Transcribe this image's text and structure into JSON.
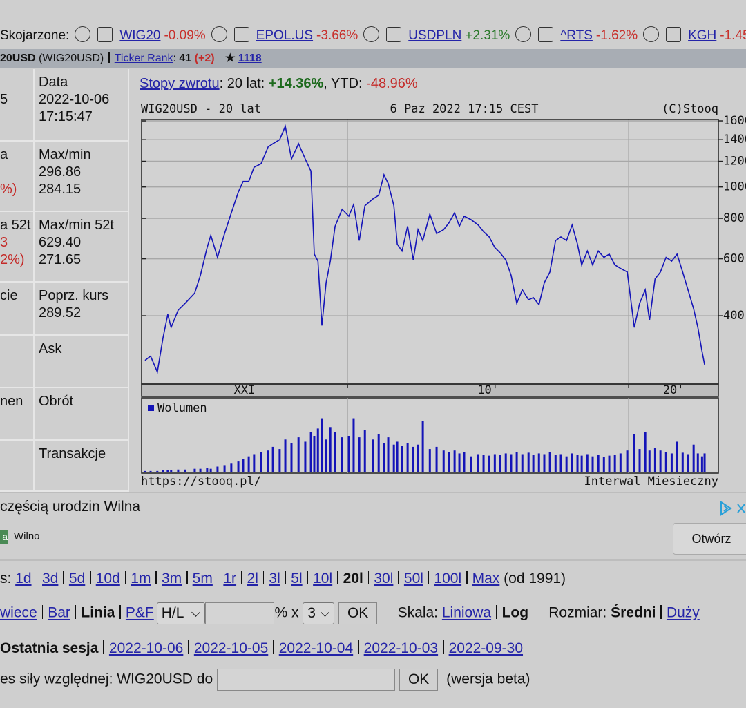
{
  "related": {
    "label": "Skojarzone:",
    "items": [
      {
        "name": "WIG20",
        "change": "-0.09%",
        "color": "#c8302c"
      },
      {
        "name": "EPOL.US",
        "change": "-3.66%",
        "color": "#c8302c"
      },
      {
        "name": "USDPLN",
        "change": "+2.31%",
        "color": "#2b7a2b"
      },
      {
        "name": "^RTS",
        "change": "-1.62%",
        "color": "#c8302c"
      },
      {
        "name": "KGH",
        "change": "-1.45",
        "color": "#c8302c"
      }
    ]
  },
  "ticker_bar": [
    {
      "text": "20USD",
      "style": "bold"
    },
    {
      "text": " (WIG20USD)"
    },
    {
      "style": "sep"
    },
    {
      "text": "Ticker Rank",
      "style": "link"
    },
    {
      "text": ": "
    },
    {
      "text": "41",
      "style": "bold"
    },
    {
      "text": " "
    },
    {
      "text": "(+2)",
      "style": "bold red"
    },
    {
      "style": "sep"
    },
    {
      "text": "★ ",
      "style": "bold"
    },
    {
      "text": "1118",
      "style": "link bold"
    }
  ],
  "quote_table": {
    "rows": [
      {
        "left": [
          null,
          {
            "text": "5"
          }
        ],
        "right": [
          "Data",
          "2022-10-06",
          "17:15:47"
        ]
      },
      {
        "left": [
          {
            "text": "a"
          },
          null,
          {
            "text": "%)",
            "style": "red"
          }
        ],
        "right": [
          "Max/min",
          "296.86",
          "284.15"
        ]
      },
      {
        "left": [
          {
            "text": "a 52t"
          },
          {
            "text": "3",
            "style": "red"
          },
          {
            "text": "2%)",
            "style": "red"
          }
        ],
        "right": [
          "Max/min 52t",
          "629.40",
          "271.65"
        ]
      },
      {
        "left": [
          {
            "text": "cie"
          }
        ],
        "right": [
          "Poprz. kurs",
          "289.52"
        ]
      },
      {
        "left": [],
        "right": [
          "Ask"
        ]
      },
      {
        "left": [
          {
            "text": "nen"
          }
        ],
        "right": [
          "Obrót"
        ]
      },
      {
        "left": [],
        "right": [
          "Transakcje"
        ]
      }
    ]
  },
  "returns": [
    {
      "text": "Stopy zwrotu",
      "style": "link"
    },
    {
      "text": ": 20 lat: "
    },
    {
      "text": "+14.36%",
      "style": "green bold"
    },
    {
      "text": ", YTD: "
    },
    {
      "text": "-48.96%",
      "style": "red"
    }
  ],
  "chart_data": {
    "type": "line",
    "title": "WIG20USD - 20 lat",
    "subtitle": "6 Paz 2022 17:15 CEST",
    "credit": "(C)Stooq",
    "color": "#1414b8",
    "log_y": true,
    "grid": true,
    "xlim": [
      2002.68,
      2023.19
    ],
    "xticks": [
      {
        "value": 2010,
        "label": "10'"
      },
      {
        "value": 2020,
        "label": "20'"
      }
    ],
    "x_start_label": "XXI",
    "ylim": [
      246,
      1616
    ],
    "yticks": [
      400,
      600,
      800,
      1000,
      1200,
      1400,
      1600
    ],
    "x": [
      2002.8,
      2003.0,
      2003.24,
      2003.44,
      2003.61,
      2003.73,
      2003.98,
      2004.23,
      2004.57,
      2004.77,
      2005.01,
      2005.14,
      2005.38,
      2005.63,
      2005.87,
      2006.12,
      2006.29,
      2006.49,
      2006.68,
      2006.93,
      2007.18,
      2007.35,
      2007.59,
      2007.79,
      2008.01,
      2008.26,
      2008.5,
      2008.7,
      2008.82,
      2008.95,
      2009.09,
      2009.24,
      2009.39,
      2009.56,
      2009.81,
      2010.05,
      2010.22,
      2010.42,
      2010.62,
      2010.91,
      2011.11,
      2011.3,
      2011.45,
      2011.65,
      2011.77,
      2011.94,
      2012.14,
      2012.34,
      2012.51,
      2012.68,
      2012.93,
      2013.17,
      2013.42,
      2013.61,
      2013.81,
      2013.98,
      2014.15,
      2014.4,
      2014.65,
      2014.84,
      2015.04,
      2015.24,
      2015.43,
      2015.63,
      2015.82,
      2016.02,
      2016.22,
      2016.44,
      2016.61,
      2016.81,
      2017.0,
      2017.2,
      2017.4,
      2017.59,
      2017.79,
      2017.99,
      2018.18,
      2018.33,
      2018.53,
      2018.72,
      2018.92,
      2019.12,
      2019.31,
      2019.51,
      2019.71,
      2019.95,
      2020.2,
      2020.39,
      2020.59,
      2020.74,
      2020.94,
      2021.13,
      2021.33,
      2021.53,
      2021.72,
      2021.92,
      2022.11,
      2022.31,
      2022.46,
      2022.61,
      2022.7
    ],
    "values": [
      291,
      300,
      268,
      341,
      404,
      368,
      416,
      437,
      470,
      533,
      650,
      709,
      606,
      718,
      832,
      964,
      1040,
      1040,
      1150,
      1180,
      1330,
      1360,
      1400,
      1540,
      1220,
      1360,
      1220,
      1120,
      620,
      590,
      373,
      506,
      590,
      756,
      853,
      812,
      883,
      683,
      875,
      919,
      942,
      1090,
      1025,
      875,
      666,
      634,
      756,
      595,
      738,
      683,
      824,
      718,
      738,
      775,
      832,
      756,
      812,
      792,
      763,
      727,
      701,
      650,
      626,
      595,
      533,
      437,
      481,
      448,
      455,
      433,
      506,
      546,
      683,
      701,
      683,
      763,
      666,
      574,
      634,
      574,
      634,
      606,
      620,
      574,
      560,
      546,
      368,
      437,
      481,
      387,
      520,
      546,
      606,
      590,
      620,
      546,
      481,
      420,
      368,
      310,
      282
    ],
    "volume": {
      "name": "Wolumen",
      "color": "#1414b8",
      "ylim": [
        0,
        100
      ],
      "values": [
        2,
        2,
        2,
        3,
        3,
        3,
        4,
        4,
        5,
        5,
        6,
        5,
        8,
        10,
        12,
        15,
        18,
        22,
        25,
        28,
        30,
        35,
        32,
        45,
        40,
        48,
        42,
        55,
        50,
        60,
        74,
        45,
        62,
        55,
        48,
        50,
        74,
        48,
        58,
        45,
        52,
        40,
        48,
        38,
        42,
        36,
        40,
        35,
        38,
        70,
        32,
        35,
        30,
        28,
        30,
        26,
        28,
        22,
        25,
        24,
        23,
        25,
        24,
        26,
        25,
        28,
        25,
        27,
        24,
        26,
        25,
        28,
        24,
        25,
        22,
        26,
        24,
        23,
        25,
        22,
        24,
        21,
        23,
        24,
        26,
        30,
        52,
        32,
        55,
        30,
        33,
        30,
        28,
        26,
        42,
        27,
        25,
        38,
        26,
        22,
        26
      ]
    },
    "footer_left": "https://stooq.pl/",
    "footer_right": "Interwal Miesieczny"
  },
  "ad": {
    "headline": "częścią urodzin Wilna",
    "badge": "a",
    "source": "Wilno",
    "button": "Otwórz"
  },
  "controls": {
    "periods": [
      {
        "text": "s: "
      },
      {
        "text": "1d",
        "style": "link"
      },
      {
        "style": "sep"
      },
      {
        "text": "3d",
        "style": "link"
      },
      {
        "style": "sep"
      },
      {
        "text": "5d",
        "style": "link"
      },
      {
        "style": "sep"
      },
      {
        "text": "10d",
        "style": "link"
      },
      {
        "style": "sep"
      },
      {
        "text": "1m",
        "style": "link"
      },
      {
        "style": "sep"
      },
      {
        "text": "3m",
        "style": "link"
      },
      {
        "style": "sep"
      },
      {
        "text": "5m",
        "style": "link"
      },
      {
        "style": "sep"
      },
      {
        "text": "1r",
        "style": "link"
      },
      {
        "style": "sep"
      },
      {
        "text": "2l",
        "style": "link"
      },
      {
        "style": "sep"
      },
      {
        "text": "3l",
        "style": "link"
      },
      {
        "style": "sep"
      },
      {
        "text": "5l",
        "style": "link"
      },
      {
        "style": "sep"
      },
      {
        "text": "10l",
        "style": "link"
      },
      {
        "style": "sep"
      },
      {
        "text": "20l",
        "style": "bold"
      },
      {
        "style": "sep"
      },
      {
        "text": "30l",
        "style": "link"
      },
      {
        "style": "sep"
      },
      {
        "text": "50l",
        "style": "link"
      },
      {
        "style": "sep"
      },
      {
        "text": "100l",
        "style": "link"
      },
      {
        "style": "sep"
      },
      {
        "text": "Max",
        "style": "link"
      },
      {
        "text": " (od 1991)"
      }
    ],
    "chart_type": [
      {
        "text": "wiece",
        "style": "link"
      },
      {
        "style": "sep"
      },
      {
        "text": "Bar",
        "style": "link"
      },
      {
        "style": "sep"
      },
      {
        "text": "Linia",
        "style": "bold"
      },
      {
        "style": "sep"
      },
      {
        "text": "P&F",
        "style": "link"
      },
      {
        "text": "H/L",
        "style": "select"
      },
      {
        "style": "input"
      },
      {
        "text": "% x "
      },
      {
        "text": "3",
        "style": "select narrow"
      },
      {
        "text": "OK",
        "style": "button"
      },
      {
        "text": "    Skala: "
      },
      {
        "text": "Liniowa",
        "style": "link"
      },
      {
        "style": "sep"
      },
      {
        "text": "Log",
        "style": "bold"
      },
      {
        "text": "     Rozmiar: "
      },
      {
        "text": "Średni",
        "style": "bold"
      },
      {
        "style": "sep"
      },
      {
        "text": "Duży",
        "style": "link"
      }
    ],
    "sessions": [
      {
        "text": "Ostatnia sesja",
        "style": "bold"
      },
      {
        "style": "sep"
      },
      {
        "text": "2022-10-06",
        "style": "link"
      },
      {
        "style": "sep"
      },
      {
        "text": "2022-10-05",
        "style": "link"
      },
      {
        "style": "sep"
      },
      {
        "text": "2022-10-04",
        "style": "link"
      },
      {
        "style": "sep"
      },
      {
        "text": "2022-10-03",
        "style": "link"
      },
      {
        "style": "sep"
      },
      {
        "text": "2022-09-30",
        "style": "link"
      }
    ],
    "relative": [
      {
        "text": "es siły względnej: WIG20USD do "
      },
      {
        "style": "input wide"
      },
      {
        "text": "OK",
        "style": "button"
      },
      {
        "text": " (wersja beta)"
      }
    ]
  }
}
